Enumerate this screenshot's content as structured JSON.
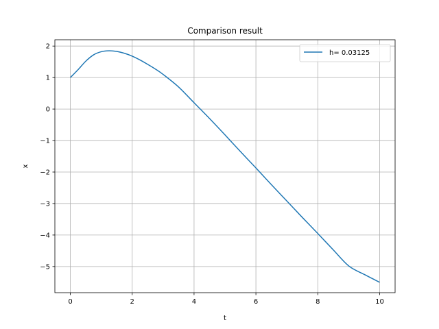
{
  "chart_data": {
    "type": "line",
    "title": "Comparison result",
    "xlabel": "t",
    "ylabel": "x",
    "xlim": [
      -0.5,
      10.5
    ],
    "ylim": [
      -5.83,
      2.2
    ],
    "xticks": [
      0,
      2,
      4,
      6,
      8,
      10
    ],
    "xtick_labels": [
      "0",
      "2",
      "4",
      "6",
      "8",
      "10"
    ],
    "yticks": [
      2,
      1,
      0,
      -1,
      -2,
      -3,
      -4,
      -5
    ],
    "ytick_labels": [
      "2",
      "1",
      "0",
      "−1",
      "−2",
      "−3",
      "−4",
      "−5"
    ],
    "grid": true,
    "legend_position": "top-right",
    "series": [
      {
        "name": "h= 0.03125",
        "color": "#1f77b4",
        "x": [
          0,
          0.25,
          0.5,
          0.75,
          1.0,
          1.25,
          1.5,
          1.75,
          2.0,
          2.25,
          2.5,
          2.75,
          3.0,
          3.5,
          4.0,
          4.5,
          5.0,
          5.5,
          6.0,
          6.5,
          7.0,
          7.5,
          8.0,
          8.5,
          9.0,
          9.5,
          10.0
        ],
        "y": [
          1.0,
          1.25,
          1.52,
          1.72,
          1.82,
          1.85,
          1.83,
          1.77,
          1.68,
          1.56,
          1.42,
          1.27,
          1.1,
          0.7,
          0.2,
          -0.3,
          -0.82,
          -1.35,
          -1.87,
          -2.4,
          -2.92,
          -3.44,
          -3.95,
          -4.47,
          -4.98,
          -5.25,
          -5.5
        ]
      }
    ]
  }
}
